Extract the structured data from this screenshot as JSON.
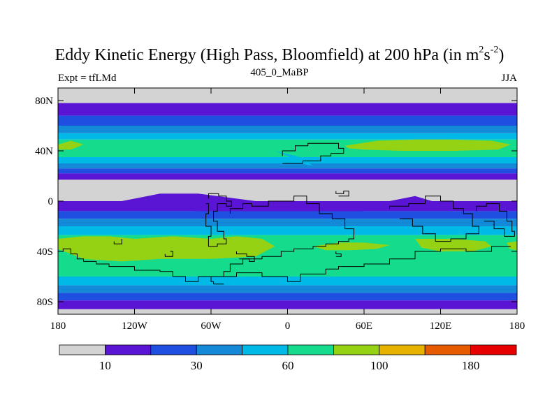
{
  "title": {
    "main": "Eddy Kinetic Energy (High Pass, Bloomfield) at 200 hPa (in m",
    "sup1": "2",
    "mid": "s",
    "sup2": "-2",
    "end": ")"
  },
  "subtitle": {
    "left": "Expt = tfLMd",
    "center": "405_0_MaBP",
    "right": "JJA"
  },
  "colors": {
    "levels": [
      "#d3d3d3",
      "#5a14d4",
      "#1f4fe0",
      "#1389d8",
      "#00b9e6",
      "#14dc8c",
      "#96d214",
      "#e6b400",
      "#e65a00",
      "#e60000"
    ],
    "coastline": "#000000"
  },
  "chart_data": {
    "type": "heatmap",
    "variable": "Eddy Kinetic Energy (High Pass, Bloomfield) at 200 hPa",
    "units": "m2 s-2",
    "experiment": "tfLMd",
    "run": "405_0_MaBP",
    "season": "JJA",
    "x_range": [
      -180,
      180
    ],
    "y_range": [
      -90,
      90
    ],
    "x_ticks": [
      {
        "value": -180,
        "label": "180"
      },
      {
        "value": -120,
        "label": "120W"
      },
      {
        "value": -60,
        "label": "60W"
      },
      {
        "value": 0,
        "label": "0"
      },
      {
        "value": 60,
        "label": "60E"
      },
      {
        "value": 120,
        "label": "120E"
      },
      {
        "value": 180,
        "label": "180"
      }
    ],
    "y_ticks": [
      {
        "value": 80,
        "label": "80N"
      },
      {
        "value": 40,
        "label": "40N"
      },
      {
        "value": 0,
        "label": "0"
      },
      {
        "value": -40,
        "label": "40S"
      },
      {
        "value": -80,
        "label": "80S"
      }
    ],
    "colorbar": {
      "labels": [
        {
          "index": 1,
          "label": "10"
        },
        {
          "index": 3,
          "label": "30"
        },
        {
          "index": 5,
          "label": "60"
        },
        {
          "index": 7,
          "label": "100"
        },
        {
          "index": 9,
          "label": "180"
        }
      ]
    },
    "zonal_bands": [
      {
        "lat": [
          78,
          90
        ],
        "level": 0
      },
      {
        "lat": [
          68,
          78
        ],
        "level": 1
      },
      {
        "lat": [
          60,
          68
        ],
        "level": 2
      },
      {
        "lat": [
          54,
          60
        ],
        "level": 3
      },
      {
        "lat": [
          49,
          54
        ],
        "level": 4
      },
      {
        "lat": [
          35,
          49
        ],
        "level": 5
      },
      {
        "lat": [
          30,
          35
        ],
        "level": 4
      },
      {
        "lat": [
          26,
          30
        ],
        "level": 3
      },
      {
        "lat": [
          22,
          26
        ],
        "level": 2
      },
      {
        "lat": [
          17,
          22
        ],
        "level": 1
      },
      {
        "lat": [
          0,
          17
        ],
        "level": 0
      },
      {
        "lat": [
          -8,
          0
        ],
        "level": 1
      },
      {
        "lat": [
          -14,
          -8
        ],
        "level": 2
      },
      {
        "lat": [
          -20,
          -14
        ],
        "level": 3
      },
      {
        "lat": [
          -27,
          -20
        ],
        "level": 4
      },
      {
        "lat": [
          -60,
          -27
        ],
        "level": 5
      },
      {
        "lat": [
          -67,
          -60
        ],
        "level": 4
      },
      {
        "lat": [
          -73,
          -67
        ],
        "level": 3
      },
      {
        "lat": [
          -79,
          -73
        ],
        "level": 2
      },
      {
        "lat": [
          -86,
          -79
        ],
        "level": 1
      },
      {
        "lat": [
          -90,
          -86
        ],
        "level": 0
      }
    ],
    "regions": [
      {
        "level": 6,
        "pts": [
          [
            -180,
            45
          ],
          [
            -170,
            48
          ],
          [
            -160,
            45
          ],
          [
            -170,
            41
          ],
          [
            -180,
            41
          ]
        ]
      },
      {
        "level": 6,
        "pts": [
          [
            45,
            44
          ],
          [
            70,
            48
          ],
          [
            100,
            49
          ],
          [
            130,
            49
          ],
          [
            160,
            48
          ],
          [
            175,
            45
          ],
          [
            165,
            41
          ],
          [
            130,
            40
          ],
          [
            90,
            40
          ],
          [
            60,
            41
          ],
          [
            48,
            42
          ]
        ]
      },
      {
        "level": 4,
        "pts": [
          [
            -10,
            40
          ],
          [
            0,
            36
          ],
          [
            10,
            30
          ],
          [
            20,
            28
          ],
          [
            10,
            35
          ]
        ]
      },
      {
        "level": 1,
        "pts": [
          [
            -130,
            0
          ],
          [
            -100,
            6
          ],
          [
            -70,
            6
          ],
          [
            -40,
            2
          ],
          [
            -10,
            -2
          ],
          [
            20,
            0
          ],
          [
            40,
            -2
          ],
          [
            60,
            -4
          ],
          [
            60,
            -8
          ],
          [
            20,
            -8
          ],
          [
            -20,
            -8
          ],
          [
            -70,
            -8
          ],
          [
            -120,
            -6
          ],
          [
            -140,
            -3
          ]
        ]
      },
      {
        "level": 1,
        "pts": [
          [
            80,
            0
          ],
          [
            100,
            4
          ],
          [
            120,
            -2
          ],
          [
            130,
            -4
          ],
          [
            110,
            -6
          ],
          [
            90,
            -4
          ]
        ]
      },
      {
        "level": 6,
        "pts": [
          [
            -180,
            -30
          ],
          [
            -160,
            -28
          ],
          [
            -140,
            -28
          ],
          [
            -120,
            -30
          ],
          [
            -90,
            -28
          ],
          [
            -60,
            -30
          ],
          [
            -40,
            -28
          ],
          [
            -20,
            -30
          ],
          [
            -10,
            -36
          ],
          [
            -25,
            -44
          ],
          [
            -60,
            -46
          ],
          [
            -100,
            -46
          ],
          [
            -130,
            -48
          ],
          [
            -160,
            -46
          ],
          [
            -175,
            -40
          ],
          [
            -180,
            -38
          ]
        ]
      },
      {
        "level": 6,
        "pts": [
          [
            20,
            -36
          ],
          [
            40,
            -33
          ],
          [
            60,
            -33
          ],
          [
            80,
            -35
          ],
          [
            70,
            -38
          ],
          [
            50,
            -39
          ],
          [
            30,
            -39
          ]
        ]
      },
      {
        "level": 6,
        "pts": [
          [
            100,
            -30
          ],
          [
            130,
            -30
          ],
          [
            155,
            -32
          ],
          [
            160,
            -36
          ],
          [
            145,
            -40
          ],
          [
            120,
            -40
          ],
          [
            105,
            -37
          ]
        ]
      },
      {
        "level": 6,
        "pts": [
          [
            172,
            -33
          ],
          [
            180,
            -32
          ],
          [
            180,
            -39
          ],
          [
            174,
            -38
          ]
        ]
      }
    ],
    "coastlines": [
      [
        [
          -176,
          -40
        ],
        [
          -170,
          -38
        ],
        [
          -165,
          -42
        ],
        [
          -160,
          -46
        ],
        [
          -150,
          -48
        ],
        [
          -140,
          -50
        ],
        [
          -120,
          -52
        ],
        [
          -100,
          -55
        ],
        [
          -90,
          -56
        ],
        [
          -80,
          -60
        ],
        [
          -70,
          -64
        ],
        [
          -65,
          -60
        ],
        [
          -40,
          -60
        ],
        [
          -20,
          -57
        ],
        [
          0,
          -60
        ],
        [
          10,
          -64
        ],
        [
          30,
          -58
        ],
        [
          40,
          -54
        ],
        [
          60,
          -52
        ],
        [
          80,
          -50
        ],
        [
          100,
          -46
        ],
        [
          120,
          -40
        ],
        [
          140,
          -38
        ],
        [
          160,
          -40
        ],
        [
          175,
          -36
        ]
      ],
      [
        [
          -45,
          -10
        ],
        [
          -35,
          -6
        ],
        [
          -28,
          -2
        ],
        [
          -15,
          -4
        ],
        [
          5,
          0
        ],
        [
          15,
          4
        ],
        [
          25,
          -2
        ],
        [
          35,
          -10
        ],
        [
          45,
          -14
        ],
        [
          52,
          -22
        ],
        [
          48,
          -30
        ],
        [
          40,
          -32
        ],
        [
          30,
          -34
        ],
        [
          20,
          -36
        ],
        [
          5,
          -38
        ],
        [
          -5,
          -40
        ],
        [
          -20,
          -44
        ],
        [
          -35,
          -46
        ],
        [
          -45,
          -50
        ],
        [
          -50,
          -56
        ],
        [
          -60,
          -60
        ],
        [
          -58,
          -64
        ],
        [
          -50,
          -66
        ]
      ],
      [
        [
          -62,
          2
        ],
        [
          -54,
          6
        ],
        [
          -48,
          4
        ],
        [
          -44,
          0
        ],
        [
          -48,
          -4
        ],
        [
          -55,
          -2
        ],
        [
          -58,
          -8
        ],
        [
          -55,
          -16
        ],
        [
          -50,
          -24
        ],
        [
          -48,
          -30
        ],
        [
          -55,
          -34
        ],
        [
          -62,
          -36
        ],
        [
          -60,
          -28
        ],
        [
          -64,
          -20
        ],
        [
          -62,
          -10
        ],
        [
          -64,
          -2
        ]
      ],
      [
        [
          -4,
          36
        ],
        [
          6,
          40
        ],
        [
          16,
          44
        ],
        [
          28,
          46
        ],
        [
          40,
          46
        ],
        [
          44,
          42
        ],
        [
          34,
          38
        ],
        [
          26,
          36
        ],
        [
          20,
          32
        ],
        [
          12,
          32
        ],
        [
          2,
          30
        ],
        [
          -4,
          30
        ]
      ],
      [
        [
          38,
          8
        ],
        [
          44,
          6
        ],
        [
          48,
          8
        ],
        [
          46,
          4
        ],
        [
          40,
          4
        ]
      ],
      [
        [
          -40,
          -40
        ],
        [
          -32,
          -42
        ],
        [
          -26,
          -44
        ],
        [
          -30,
          -48
        ],
        [
          -38,
          -46
        ]
      ],
      [
        [
          80,
          -6
        ],
        [
          95,
          -4
        ],
        [
          108,
          -2
        ],
        [
          120,
          4
        ],
        [
          130,
          0
        ],
        [
          138,
          -6
        ],
        [
          145,
          -10
        ],
        [
          150,
          -20
        ],
        [
          140,
          -26
        ],
        [
          128,
          -30
        ],
        [
          116,
          -32
        ],
        [
          106,
          -26
        ],
        [
          98,
          -20
        ],
        [
          88,
          -14
        ]
      ],
      [
        [
          148,
          -8
        ],
        [
          156,
          -4
        ],
        [
          166,
          -2
        ],
        [
          172,
          -8
        ],
        [
          176,
          -16
        ],
        [
          178,
          -24
        ],
        [
          170,
          -28
        ],
        [
          162,
          -22
        ],
        [
          154,
          -16
        ]
      ],
      [
        [
          -136,
          -32
        ],
        [
          -130,
          -34
        ],
        [
          -130,
          -30
        ]
      ],
      [
        [
          -96,
          -42
        ],
        [
          -90,
          -44
        ],
        [
          -92,
          -40
        ]
      ],
      [
        [
          38,
          -40
        ],
        [
          42,
          -42
        ],
        [
          38,
          -44
        ]
      ]
    ]
  }
}
